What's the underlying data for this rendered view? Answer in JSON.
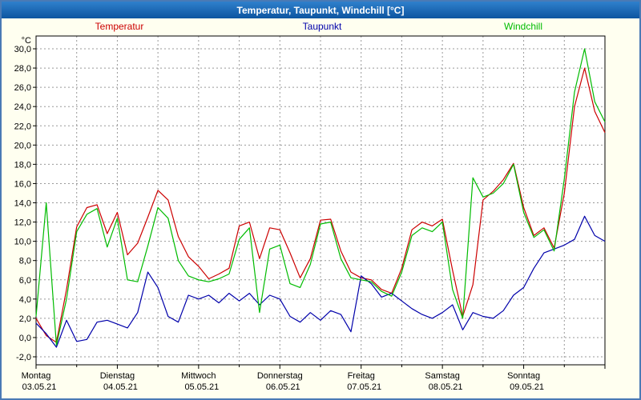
{
  "window": {
    "title": "Temperatur, Taupunkt, Windchill [°C]",
    "titlebar_color": "#1565b5",
    "background_color": "#fffff0",
    "border_color": "#4a7ab5"
  },
  "legend": {
    "items": [
      {
        "label": "Temperatur",
        "color": "#cc0000"
      },
      {
        "label": "Taupunkt",
        "color": "#0000aa"
      },
      {
        "label": "Windchill",
        "color": "#00bb00"
      }
    ]
  },
  "chart_data": {
    "type": "line",
    "title": "Temperatur, Taupunkt, Windchill [°C]",
    "unit": "°C",
    "ylim": [
      -2,
      30
    ],
    "ytick_step": 2,
    "ytick_labels_top_to_bottom": [
      "30,0",
      "28,0",
      "26,0",
      "24,0",
      "22,0",
      "20,0",
      "18,0",
      "16,0",
      "14,0",
      "12,0",
      "10,0",
      "8,0",
      "6,0",
      "4,0",
      "2,0",
      "0,0",
      "-2,0"
    ],
    "x_range_hours": [
      0,
      168
    ],
    "sample_step_hours": 3,
    "grid": {
      "vertical_interval_hours": 12,
      "horizontal_interval_deg": 2,
      "style": "dashed"
    },
    "x_axis_days": [
      {
        "name": "Montag",
        "date": "03.05.21"
      },
      {
        "name": "Dienstag",
        "date": "04.05.21"
      },
      {
        "name": "Mittwoch",
        "date": "05.05.21"
      },
      {
        "name": "Donnerstag",
        "date": "06.05.21"
      },
      {
        "name": "Freitag",
        "date": "07.05.21"
      },
      {
        "name": "Samstag",
        "date": "08.05.21"
      },
      {
        "name": "Sonntag",
        "date": "09.05.21"
      }
    ],
    "series": [
      {
        "name": "Temperatur",
        "color": "#cc0000",
        "values": [
          2.0,
          0.2,
          -0.5,
          5.0,
          11.5,
          13.5,
          13.8,
          10.8,
          13.0,
          8.6,
          9.8,
          12.5,
          15.3,
          14.3,
          10.5,
          8.4,
          7.4,
          6.1,
          6.6,
          7.2,
          11.6,
          12.0,
          8.2,
          11.4,
          11.2,
          8.8,
          6.2,
          8.2,
          12.2,
          12.3,
          9.0,
          6.8,
          6.2,
          6.0,
          5.0,
          4.6,
          7.2,
          11.2,
          12.0,
          11.6,
          12.3,
          7.0,
          2.2,
          5.5,
          14.3,
          15.2,
          16.4,
          18.1,
          13.5,
          10.6,
          11.4,
          9.3,
          15.0,
          24.0,
          28.0,
          23.5,
          21.3
        ]
      },
      {
        "name": "Taupunkt",
        "color": "#0000aa",
        "values": [
          1.5,
          0.4,
          -1.0,
          1.8,
          -0.4,
          -0.2,
          1.6,
          1.8,
          1.4,
          1.0,
          2.6,
          6.8,
          5.2,
          2.2,
          1.6,
          4.4,
          4.0,
          4.4,
          3.6,
          4.6,
          3.8,
          4.6,
          3.4,
          4.4,
          4.0,
          2.2,
          1.6,
          2.6,
          1.8,
          2.8,
          2.4,
          0.6,
          6.4,
          5.6,
          4.2,
          4.6,
          3.8,
          3.0,
          2.4,
          2.0,
          2.6,
          3.4,
          0.8,
          2.6,
          2.2,
          2.0,
          2.8,
          4.4,
          5.2,
          7.2,
          8.8,
          9.2,
          9.6,
          10.2,
          12.6,
          10.6,
          10.0
        ]
      },
      {
        "name": "Windchill",
        "color": "#00bb00",
        "values": [
          2.2,
          14.0,
          -0.8,
          4.0,
          11.0,
          12.8,
          13.4,
          9.4,
          12.4,
          6.0,
          5.8,
          9.5,
          13.5,
          12.4,
          8.0,
          6.4,
          6.0,
          5.8,
          6.1,
          6.6,
          10.2,
          11.4,
          2.6,
          9.2,
          9.6,
          5.6,
          5.2,
          7.6,
          11.8,
          12.0,
          8.2,
          6.2,
          6.0,
          5.8,
          4.8,
          4.3,
          6.8,
          10.6,
          11.4,
          11.0,
          12.0,
          5.0,
          2.0,
          16.6,
          14.6,
          15.0,
          16.0,
          18.0,
          13.0,
          10.4,
          11.2,
          9.0,
          16.5,
          25.5,
          30.0,
          24.5,
          22.4
        ]
      }
    ]
  }
}
